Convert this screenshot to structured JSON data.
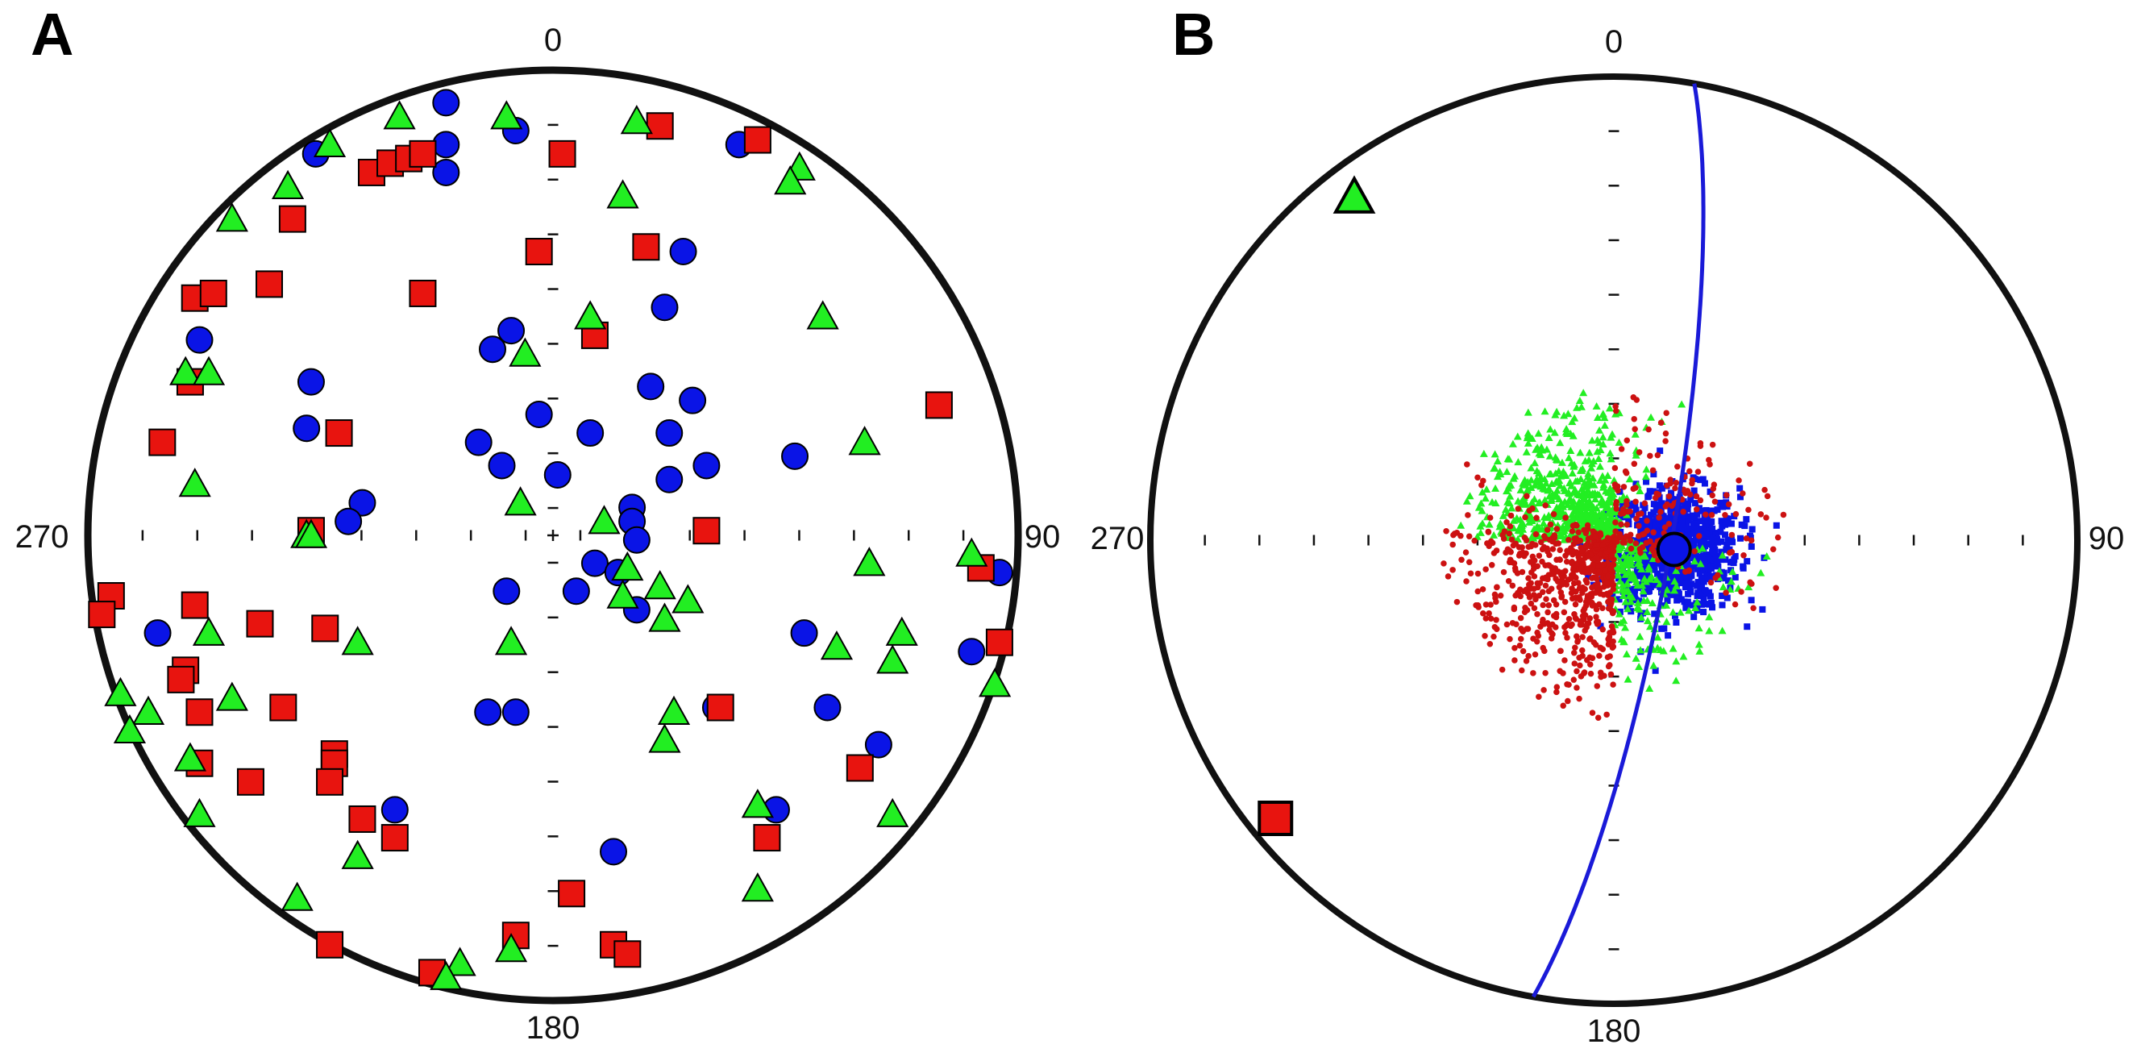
{
  "figure": {
    "colors": {
      "circle_data": "#0a14e6",
      "square_data": "#e8140f",
      "triangle_data": "#22ee22",
      "frame": "#111111",
      "great_circle": "#1a1ad8"
    }
  },
  "chart_data": [
    {
      "type": "scatter",
      "projection": "equal-area stereonet",
      "panel_label": "A",
      "direction_labels": {
        "north": "0",
        "east": "90",
        "south": "180",
        "west": "270"
      },
      "legend": "none",
      "series": [
        {
          "name": "circles",
          "marker": "circle",
          "color": "#0a14e6",
          "points": [
            [
              -0.23,
              0.93
            ],
            [
              -0.51,
              0.82
            ],
            [
              -0.23,
              0.84
            ],
            [
              -0.23,
              0.78
            ],
            [
              -0.08,
              0.87
            ],
            [
              0.4,
              0.84
            ],
            [
              0.28,
              0.61
            ],
            [
              0.24,
              0.49
            ],
            [
              -0.76,
              0.42
            ],
            [
              -0.52,
              0.33
            ],
            [
              -0.13,
              0.4
            ],
            [
              -0.09,
              0.44
            ],
            [
              0.21,
              0.32
            ],
            [
              0.3,
              0.29
            ],
            [
              -0.53,
              0.23
            ],
            [
              -0.03,
              0.26
            ],
            [
              0.08,
              0.22
            ],
            [
              -0.16,
              0.2
            ],
            [
              -0.11,
              0.15
            ],
            [
              0.25,
              0.22
            ],
            [
              0.33,
              0.15
            ],
            [
              0.52,
              0.17
            ],
            [
              0.01,
              0.13
            ],
            [
              0.25,
              0.12
            ],
            [
              -0.41,
              0.07
            ],
            [
              -0.44,
              0.03
            ],
            [
              0.17,
              0.06
            ],
            [
              0.17,
              0.03
            ],
            [
              0.18,
              -0.01
            ],
            [
              0.09,
              -0.06
            ],
            [
              0.14,
              -0.08
            ],
            [
              0.18,
              -0.16
            ],
            [
              -0.1,
              -0.12
            ],
            [
              0.05,
              -0.12
            ],
            [
              0.96,
              -0.08
            ],
            [
              -0.85,
              -0.21
            ],
            [
              0.54,
              -0.21
            ],
            [
              0.9,
              -0.25
            ],
            [
              -0.14,
              -0.38
            ],
            [
              -0.08,
              -0.38
            ],
            [
              0.35,
              -0.37
            ],
            [
              0.59,
              -0.37
            ],
            [
              0.7,
              -0.45
            ],
            [
              -0.34,
              -0.59
            ],
            [
              0.48,
              -0.59
            ],
            [
              0.13,
              -0.68
            ]
          ]
        },
        {
          "name": "squares",
          "marker": "square",
          "color": "#e8140f",
          "points": [
            [
              0.23,
              0.88
            ],
            [
              0.02,
              0.82
            ],
            [
              0.44,
              0.85
            ],
            [
              -0.39,
              0.78
            ],
            [
              -0.35,
              0.8
            ],
            [
              -0.31,
              0.81
            ],
            [
              -0.28,
              0.82
            ],
            [
              -0.56,
              0.68
            ],
            [
              0.2,
              0.62
            ],
            [
              -0.03,
              0.61
            ],
            [
              -0.28,
              0.52
            ],
            [
              -0.77,
              0.51
            ],
            [
              -0.73,
              0.52
            ],
            [
              -0.61,
              0.54
            ],
            [
              0.09,
              0.43
            ],
            [
              -0.78,
              0.33
            ],
            [
              0.83,
              0.28
            ],
            [
              -0.84,
              0.2
            ],
            [
              -0.46,
              0.22
            ],
            [
              -0.52,
              0.01
            ],
            [
              0.33,
              0.01
            ],
            [
              0.92,
              -0.07
            ],
            [
              -0.95,
              -0.13
            ],
            [
              -0.97,
              -0.17
            ],
            [
              -0.77,
              -0.15
            ],
            [
              -0.63,
              -0.19
            ],
            [
              -0.49,
              -0.2
            ],
            [
              0.96,
              -0.23
            ],
            [
              -0.79,
              -0.29
            ],
            [
              -0.8,
              -0.31
            ],
            [
              -0.76,
              -0.38
            ],
            [
              -0.58,
              -0.37
            ],
            [
              0.36,
              -0.37
            ],
            [
              -0.47,
              -0.47
            ],
            [
              -0.47,
              -0.49
            ],
            [
              -0.76,
              -0.49
            ],
            [
              -0.65,
              -0.53
            ],
            [
              -0.48,
              -0.53
            ],
            [
              0.66,
              -0.5
            ],
            [
              -0.41,
              -0.61
            ],
            [
              -0.34,
              -0.65
            ],
            [
              0.46,
              -0.65
            ],
            [
              0.04,
              -0.77
            ],
            [
              -0.08,
              -0.86
            ],
            [
              -0.48,
              -0.88
            ],
            [
              0.13,
              -0.88
            ],
            [
              0.16,
              -0.9
            ],
            [
              -0.26,
              -0.94
            ]
          ]
        },
        {
          "name": "triangles",
          "marker": "triangle",
          "color": "#22ee22",
          "points": [
            [
              -0.33,
              0.9
            ],
            [
              -0.1,
              0.9
            ],
            [
              0.18,
              0.89
            ],
            [
              -0.48,
              0.84
            ],
            [
              0.53,
              0.79
            ],
            [
              -0.57,
              0.75
            ],
            [
              0.51,
              0.76
            ],
            [
              0.15,
              0.73
            ],
            [
              -0.69,
              0.68
            ],
            [
              0.08,
              0.47
            ],
            [
              0.58,
              0.47
            ],
            [
              -0.06,
              0.39
            ],
            [
              -0.79,
              0.35
            ],
            [
              -0.74,
              0.35
            ],
            [
              0.67,
              0.2
            ],
            [
              -0.77,
              0.11
            ],
            [
              -0.07,
              0.07
            ],
            [
              0.11,
              0.03
            ],
            [
              -0.53,
              0.0
            ],
            [
              -0.52,
              0.0
            ],
            [
              0.9,
              -0.04
            ],
            [
              0.68,
              -0.06
            ],
            [
              0.16,
              -0.07
            ],
            [
              0.23,
              -0.11
            ],
            [
              0.15,
              -0.13
            ],
            [
              0.29,
              -0.14
            ],
            [
              0.24,
              -0.18
            ],
            [
              0.75,
              -0.21
            ],
            [
              -0.74,
              -0.21
            ],
            [
              -0.42,
              -0.23
            ],
            [
              -0.09,
              -0.23
            ],
            [
              0.61,
              -0.24
            ],
            [
              0.73,
              -0.27
            ],
            [
              -0.93,
              -0.34
            ],
            [
              -0.87,
              -0.38
            ],
            [
              -0.69,
              -0.35
            ],
            [
              0.26,
              -0.38
            ],
            [
              0.95,
              -0.32
            ],
            [
              -0.91,
              -0.42
            ],
            [
              0.24,
              -0.44
            ],
            [
              -0.78,
              -0.48
            ],
            [
              -0.76,
              -0.6
            ],
            [
              0.44,
              -0.58
            ],
            [
              0.73,
              -0.6
            ],
            [
              -0.42,
              -0.69
            ],
            [
              0.44,
              -0.76
            ],
            [
              -0.55,
              -0.78
            ],
            [
              -0.09,
              -0.89
            ],
            [
              -0.2,
              -0.92
            ],
            [
              -0.23,
              -0.95
            ]
          ]
        }
      ]
    },
    {
      "type": "scatter",
      "projection": "equal-area stereonet",
      "panel_label": "B",
      "direction_labels": {
        "north": "0",
        "east": "90",
        "south": "180",
        "west": "270"
      },
      "legend": "none",
      "cloud_series": [
        {
          "name": "circle-axis samples",
          "marker": "square-dot",
          "color": "#0a14e6",
          "count": 800,
          "center": [
            0.13,
            -0.02
          ],
          "spread": [
            0.07,
            0.065
          ]
        },
        {
          "name": "triangle-axis samples",
          "marker": "triangle-dot",
          "color": "#22ee22",
          "count": 900,
          "band_dip_deg": [
            62,
            90
          ],
          "arcs_deg": [
            [
              270,
              325,
              0.55
            ],
            [
              325,
              360,
              0.18
            ],
            [
              0,
              28,
              0.04
            ],
            [
              95,
              140,
              0.1
            ],
            [
              140,
              180,
              0.13
            ]
          ]
        },
        {
          "name": "square-axis samples",
          "marker": "dot",
          "color": "#cc1111",
          "count": 900,
          "band_dip_deg": [
            58,
            90
          ],
          "arcs_deg": [
            [
              180,
              245,
              0.55
            ],
            [
              245,
              275,
              0.2
            ],
            [
              275,
              300,
              0.05
            ],
            [
              0,
              30,
              0.05
            ],
            [
              40,
              120,
              0.15
            ]
          ]
        }
      ],
      "mean_vectors": [
        {
          "name": "mean-circle",
          "marker": "circle",
          "color": "#0a14e6",
          "point": [
            0.13,
            -0.02
          ]
        },
        {
          "name": "mean-triangle",
          "marker": "triangle",
          "color": "#22ee22",
          "point": [
            -0.56,
            0.74
          ]
        },
        {
          "name": "mean-square",
          "marker": "square",
          "color": "#e8140f",
          "point": [
            -0.73,
            -0.6
          ]
        }
      ],
      "great_circle": {
        "name": "best-fit great circle",
        "color": "#1a1ad8",
        "strike_deg": 10,
        "dip_deg": 80
      }
    }
  ]
}
